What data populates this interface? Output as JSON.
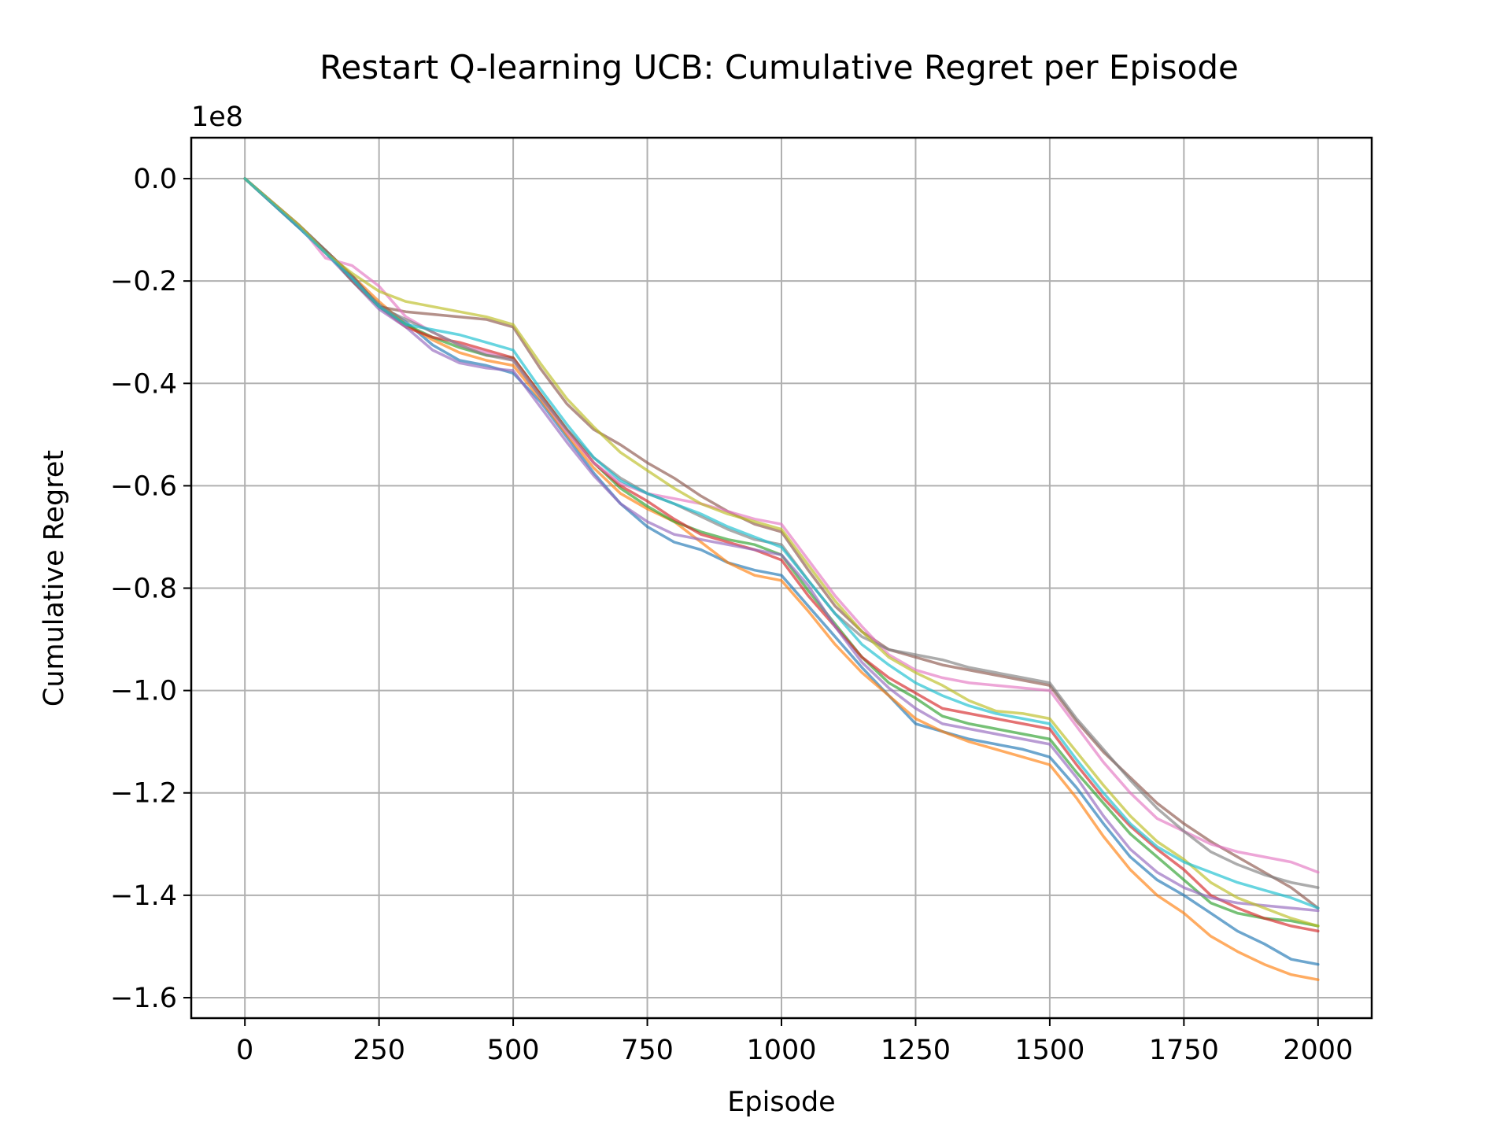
{
  "chart_data": {
    "type": "line",
    "title": "Restart Q-learning UCB: Cumulative Regret per Episode",
    "xlabel": "Episode",
    "ylabel": "Cumulative Regret",
    "y_offset_label": "1e8",
    "y_scale_factor": 100000000,
    "xlim": [
      -100,
      2100
    ],
    "ylim": [
      -164000000,
      8000000
    ],
    "x_ticks": [
      0,
      250,
      500,
      750,
      1000,
      1250,
      1500,
      1750,
      2000
    ],
    "x_tick_labels": [
      "0",
      "250",
      "500",
      "750",
      "1000",
      "1250",
      "1500",
      "1750",
      "2000"
    ],
    "y_ticks": [
      0,
      -20000000,
      -40000000,
      -60000000,
      -80000000,
      -100000000,
      -120000000,
      -140000000,
      -160000000
    ],
    "y_tick_labels": [
      "0.0",
      "−0.2",
      "−0.4",
      "−0.6",
      "−0.8",
      "−1.0",
      "−1.2",
      "−1.4",
      "−1.6"
    ],
    "grid": true,
    "legend": "none",
    "x": [
      0,
      100,
      150,
      200,
      250,
      300,
      350,
      400,
      450,
      500,
      550,
      600,
      650,
      700,
      750,
      800,
      850,
      900,
      950,
      1000,
      1050,
      1100,
      1150,
      1200,
      1250,
      1300,
      1350,
      1400,
      1450,
      1500,
      1550,
      1600,
      1650,
      1700,
      1750,
      1800,
      1850,
      1900,
      1950,
      2000
    ],
    "series": [
      {
        "color": "#1f77b4",
        "values": [
          0,
          -9500000,
          -14500000,
          -19500000,
          -24500000,
          -28000000,
          -32500000,
          -35500000,
          -36500000,
          -38000000,
          -43500000,
          -50500000,
          -57500000,
          -63500000,
          -68000000,
          -71000000,
          -72500000,
          -75000000,
          -76500000,
          -77500000,
          -83500000,
          -89500000,
          -95500000,
          -101000000,
          -106500000,
          -108000000,
          -109500000,
          -110500000,
          -111500000,
          -113000000,
          -119000000,
          -126000000,
          -132500000,
          -137000000,
          -140000000,
          -143500000,
          -147000000,
          -149500000,
          -152500000,
          -153500000
        ]
      },
      {
        "color": "#ff7f0e",
        "values": [
          0,
          -9000000,
          -14000000,
          -19000000,
          -24000000,
          -28500000,
          -31500000,
          -34000000,
          -35500000,
          -36500000,
          -43000000,
          -50000000,
          -56500000,
          -61500000,
          -64500000,
          -67000000,
          -71000000,
          -75000000,
          -77500000,
          -78500000,
          -84500000,
          -91000000,
          -96500000,
          -101000000,
          -105500000,
          -108000000,
          -110000000,
          -111500000,
          -113000000,
          -114500000,
          -121000000,
          -128500000,
          -135000000,
          -140000000,
          -143500000,
          -148000000,
          -151000000,
          -153500000,
          -155500000,
          -156500000
        ]
      },
      {
        "color": "#2ca02c",
        "values": [
          0,
          -9500000,
          -14000000,
          -19000000,
          -25000000,
          -28500000,
          -31000000,
          -33000000,
          -34500000,
          -35000000,
          -42000000,
          -49000000,
          -55500000,
          -60500000,
          -64000000,
          -67000000,
          -69000000,
          -70500000,
          -71500000,
          -73500000,
          -80500000,
          -87000000,
          -93500000,
          -98500000,
          -101500000,
          -105000000,
          -106500000,
          -107500000,
          -108500000,
          -109500000,
          -116000000,
          -122000000,
          -128000000,
          -132500000,
          -137000000,
          -141500000,
          -143500000,
          -144500000,
          -145000000,
          -146000000
        ]
      },
      {
        "color": "#d62728",
        "values": [
          0,
          -9500000,
          -14000000,
          -19000000,
          -25000000,
          -29000000,
          -31000000,
          -32000000,
          -33500000,
          -35000000,
          -42000000,
          -49000000,
          -55500000,
          -60000000,
          -63000000,
          -66500000,
          -69500000,
          -71000000,
          -72500000,
          -74500000,
          -81500000,
          -87500000,
          -93500000,
          -97500000,
          -100500000,
          -103500000,
          -104500000,
          -105500000,
          -106500000,
          -107500000,
          -114500000,
          -121000000,
          -126500000,
          -131000000,
          -135000000,
          -140000000,
          -142500000,
          -144500000,
          -146000000,
          -147000000
        ]
      },
      {
        "color": "#9467bd",
        "values": [
          0,
          -9500000,
          -14500000,
          -20000000,
          -25500000,
          -29000000,
          -33500000,
          -36000000,
          -37000000,
          -37500000,
          -44500000,
          -51500000,
          -58000000,
          -63500000,
          -67000000,
          -69500000,
          -70500000,
          -71500000,
          -72500000,
          -73500000,
          -79500000,
          -87500000,
          -94500000,
          -99500000,
          -103500000,
          -106500000,
          -107500000,
          -108500000,
          -109500000,
          -110500000,
          -117000000,
          -124500000,
          -131000000,
          -135500000,
          -138500000,
          -140500000,
          -141500000,
          -142000000,
          -142500000,
          -143000000
        ]
      },
      {
        "color": "#8c564b",
        "values": [
          0,
          -9000000,
          -14000000,
          -20000000,
          -25000000,
          -26000000,
          -26500000,
          -27000000,
          -27500000,
          -29000000,
          -37000000,
          -44000000,
          -49000000,
          -52000000,
          -55500000,
          -58500000,
          -62000000,
          -65000000,
          -67500000,
          -69000000,
          -76500000,
          -83500000,
          -88500000,
          -92000000,
          -93500000,
          -95000000,
          -96000000,
          -97000000,
          -98000000,
          -99000000,
          -106000000,
          -112000000,
          -117000000,
          -122000000,
          -126000000,
          -129500000,
          -132500000,
          -135500000,
          -138500000,
          -142500000
        ]
      },
      {
        "color": "#e377c2",
        "values": [
          0,
          -9000000,
          -15500000,
          -17000000,
          -21000000,
          -27000000,
          -30000000,
          -32500000,
          -34000000,
          -35500000,
          -42500000,
          -49500000,
          -55500000,
          -59500000,
          -61500000,
          -62500000,
          -63500000,
          -65000000,
          -66500000,
          -67500000,
          -74500000,
          -81500000,
          -87500000,
          -93000000,
          -96000000,
          -97500000,
          -98500000,
          -99000000,
          -99500000,
          -100000000,
          -107000000,
          -114000000,
          -120000000,
          -125000000,
          -127500000,
          -130000000,
          -131500000,
          -132500000,
          -133500000,
          -135500000
        ]
      },
      {
        "color": "#7f7f7f",
        "values": [
          0,
          -9000000,
          -14000000,
          -19000000,
          -25000000,
          -27500000,
          -30000000,
          -32500000,
          -34500000,
          -35500000,
          -42500000,
          -49000000,
          -54500000,
          -58500000,
          -61500000,
          -63500000,
          -66000000,
          -68500000,
          -70500000,
          -71500000,
          -78500000,
          -85000000,
          -89500000,
          -92000000,
          -93000000,
          -94000000,
          -95500000,
          -96500000,
          -97500000,
          -98500000,
          -105500000,
          -111500000,
          -117500000,
          -123000000,
          -127500000,
          -131500000,
          -134000000,
          -136000000,
          -137500000,
          -138500000
        ]
      },
      {
        "color": "#bcbd22",
        "values": [
          0,
          -9000000,
          -14500000,
          -18500000,
          -22000000,
          -24000000,
          -25000000,
          -26000000,
          -27000000,
          -28500000,
          -36000000,
          -43000000,
          -48500000,
          -53500000,
          -57000000,
          -60500000,
          -63500000,
          -65500000,
          -67000000,
          -68500000,
          -75500000,
          -82500000,
          -88500000,
          -93500000,
          -96500000,
          -99000000,
          -102000000,
          -104000000,
          -104500000,
          -105500000,
          -112000000,
          -118500000,
          -124500000,
          -129500000,
          -133000000,
          -137500000,
          -140500000,
          -142500000,
          -144500000,
          -146000000
        ]
      },
      {
        "color": "#17becf",
        "values": [
          0,
          -9500000,
          -14500000,
          -19500000,
          -25000000,
          -28500000,
          -29500000,
          -30500000,
          -32000000,
          -33500000,
          -41000000,
          -48000000,
          -54500000,
          -59000000,
          -61500000,
          -63500000,
          -65500000,
          -68000000,
          -70000000,
          -72000000,
          -78500000,
          -85000000,
          -91000000,
          -95000000,
          -98500000,
          -101000000,
          -103000000,
          -104500000,
          -105500000,
          -106500000,
          -113500000,
          -120000000,
          -126000000,
          -130500000,
          -133500000,
          -135500000,
          -137500000,
          -139000000,
          -140500000,
          -142500000
        ]
      }
    ]
  }
}
